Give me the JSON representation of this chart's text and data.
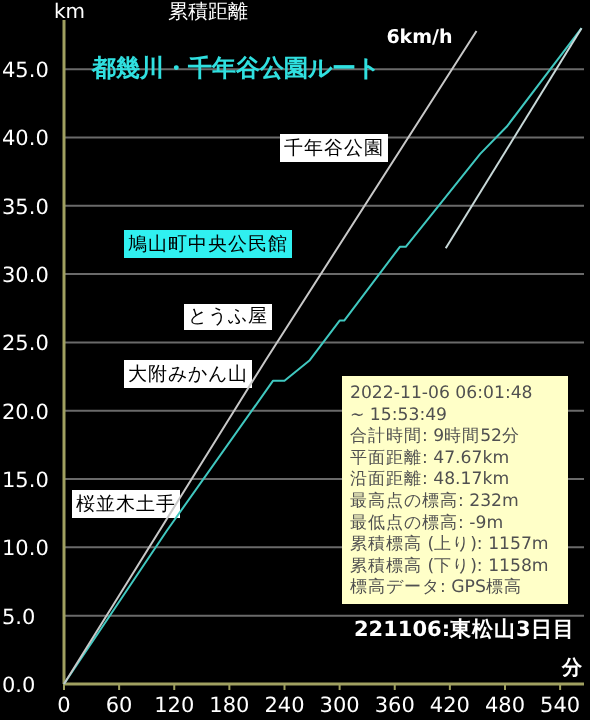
{
  "chart_data": {
    "type": "line",
    "title": "都幾川・千年谷公園ルート",
    "subtitle": "累積距離",
    "ylabel": "km",
    "xlabel": "分",
    "xlim": [
      0,
      566
    ],
    "ylim": [
      0,
      48.6
    ],
    "xticks": [
      0,
      60,
      120,
      180,
      240,
      300,
      360,
      420,
      480,
      540
    ],
    "yticks": [
      {
        "value": 0,
        "label": "0.0"
      },
      {
        "value": 5,
        "label": "5.0"
      },
      {
        "value": 10,
        "label": "10.0"
      },
      {
        "value": 15,
        "label": "15.0"
      },
      {
        "value": 20,
        "label": "20.0"
      },
      {
        "value": 25,
        "label": "25.0"
      },
      {
        "value": 30,
        "label": "30.0"
      },
      {
        "value": 35,
        "label": "35.0"
      },
      {
        "value": 40,
        "label": "40.0"
      },
      {
        "value": 45,
        "label": "45.0"
      }
    ],
    "grid": "y",
    "series": [
      {
        "color": "#40c8c0",
        "x": [
          0,
          111.7,
          227.6,
          240,
          267.5,
          300,
          305,
          365.6,
          372,
          453,
          482,
          563.3
        ],
        "values": [
          0,
          11.2,
          22.2,
          22.2,
          23.7,
          26.6,
          26.6,
          32.0,
          32.0,
          38.8,
          40.8,
          48.0
        ]
      },
      {
        "name": "6km/h",
        "color": "#c8c8c8",
        "x": [
          0,
          219.5,
          449
        ],
        "values": [
          0,
          23.7,
          47.8
        ]
      },
      {
        "color": "#c8d8d8",
        "x": [
          415.5,
          563.3
        ],
        "values": [
          31.9,
          48.0
        ]
      }
    ],
    "annotations": [
      "千年谷公園",
      "鳩山町中央公民館",
      "とうふ屋",
      "大附みかん山",
      "桜並木土手",
      "2022-11-06 06:01:48",
      " ~ 15:53:49",
      "合計時間: 9時間52分",
      "平面距離: 47.67km",
      "沿面距離: 48.17km",
      "最高点の標高: 232m",
      "最低点の標高: -9m",
      "累積標高 (上り): 1157m",
      "累積標高 (下り): 1158m",
      "標高データ: GPS標高",
      "221106:東松山3日目"
    ]
  }
}
